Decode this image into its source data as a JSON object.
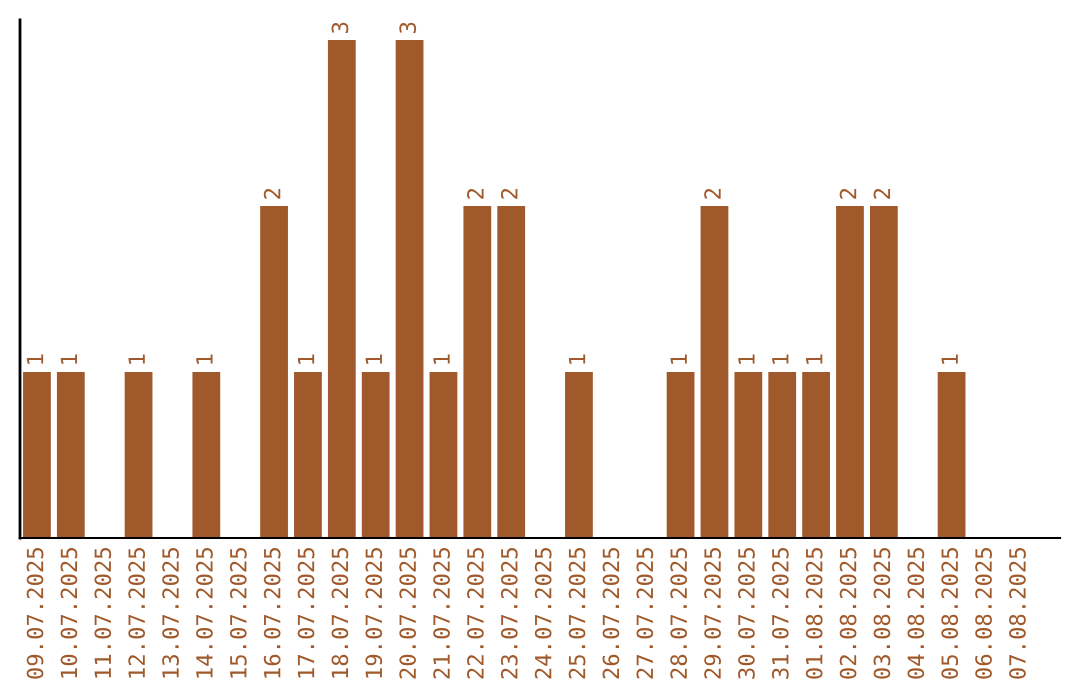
{
  "chart_data": {
    "type": "bar",
    "categories": [
      "09.07.2025",
      "10.07.2025",
      "11.07.2025",
      "12.07.2025",
      "13.07.2025",
      "14.07.2025",
      "15.07.2025",
      "16.07.2025",
      "17.07.2025",
      "18.07.2025",
      "19.07.2025",
      "20.07.2025",
      "21.07.2025",
      "22.07.2025",
      "23.07.2025",
      "24.07.2025",
      "25.07.2025",
      "26.07.2025",
      "27.07.2025",
      "28.07.2025",
      "29.07.2025",
      "30.07.2025",
      "31.07.2025",
      "01.08.2025",
      "02.08.2025",
      "03.08.2025",
      "04.08.2025",
      "05.08.2025",
      "06.08.2025",
      "07.08.2025"
    ],
    "values": [
      1,
      1,
      0,
      1,
      0,
      1,
      0,
      2,
      1,
      3,
      1,
      3,
      1,
      2,
      2,
      0,
      1,
      0,
      0,
      1,
      2,
      1,
      1,
      1,
      2,
      2,
      0,
      1,
      0,
      0
    ],
    "value_labels": [
      "1",
      "1",
      null,
      "1",
      null,
      "1",
      null,
      "2",
      "1",
      "3",
      "1",
      "3",
      "1",
      "2",
      "2",
      null,
      "1",
      null,
      null,
      "1",
      "2",
      "1",
      "1",
      "1",
      "2",
      "2",
      null,
      "1",
      null,
      null
    ],
    "color": "#a0592a",
    "tick_labels": "x",
    "grid": false,
    "legend": false
  }
}
